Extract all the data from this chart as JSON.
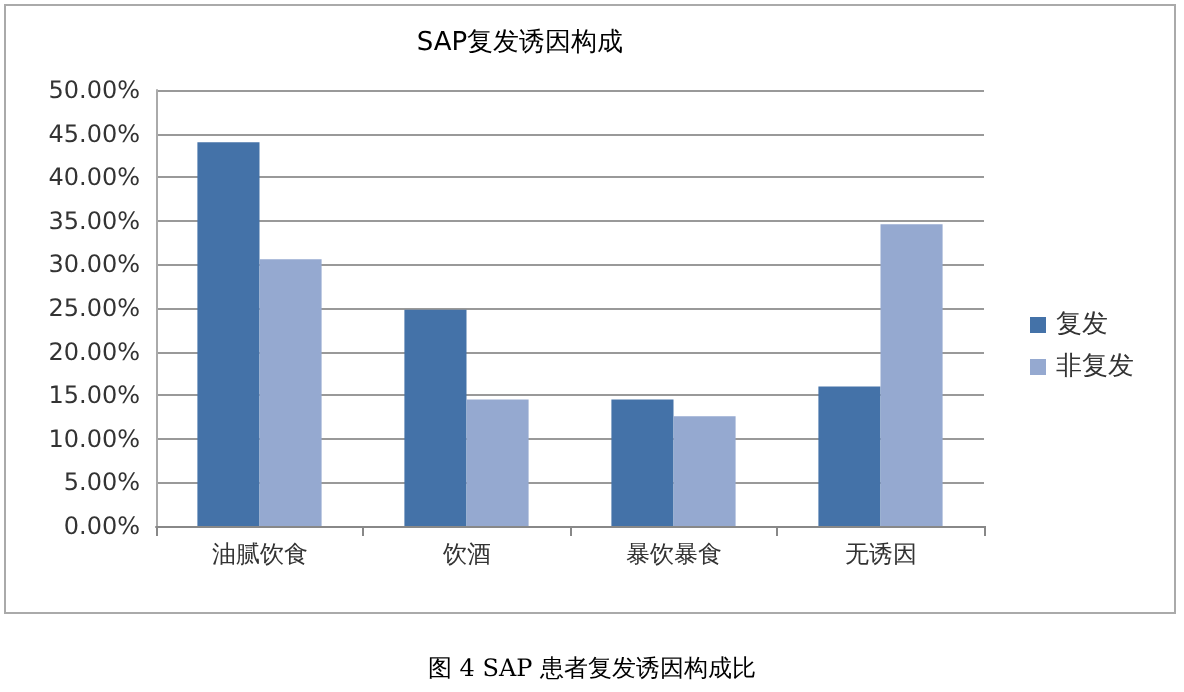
{
  "chart_data": {
    "type": "bar",
    "title": "SAP复发诱因构成",
    "categories": [
      "油腻饮食",
      "饮酒",
      "暴饮暴食",
      "无诱因"
    ],
    "series": [
      {
        "name": "复发",
        "color": "#4472a8",
        "values": [
          44,
          24.8,
          14.5,
          16
        ]
      },
      {
        "name": "非复发",
        "color": "#95a9d0",
        "values": [
          30.6,
          14.5,
          12.6,
          34.6
        ]
      }
    ],
    "ylim": [
      0,
      50
    ],
    "yticks": [
      {
        "value": 0,
        "label": "0.00%"
      },
      {
        "value": 5,
        "label": "5.00%"
      },
      {
        "value": 10,
        "label": "10.00%"
      },
      {
        "value": 15,
        "label": "15.00%"
      },
      {
        "value": 20,
        "label": "20.00%"
      },
      {
        "value": 25,
        "label": "25.00%"
      },
      {
        "value": 30,
        "label": "30.00%"
      },
      {
        "value": 35,
        "label": "35.00%"
      },
      {
        "value": 40,
        "label": "40.00%"
      },
      {
        "value": 45,
        "label": "45.00%"
      },
      {
        "value": 50,
        "label": "50.00%"
      }
    ],
    "grid": "y",
    "legend": "right",
    "annotations": [
      "图 4 SAP 患者复发诱因构成比"
    ]
  }
}
